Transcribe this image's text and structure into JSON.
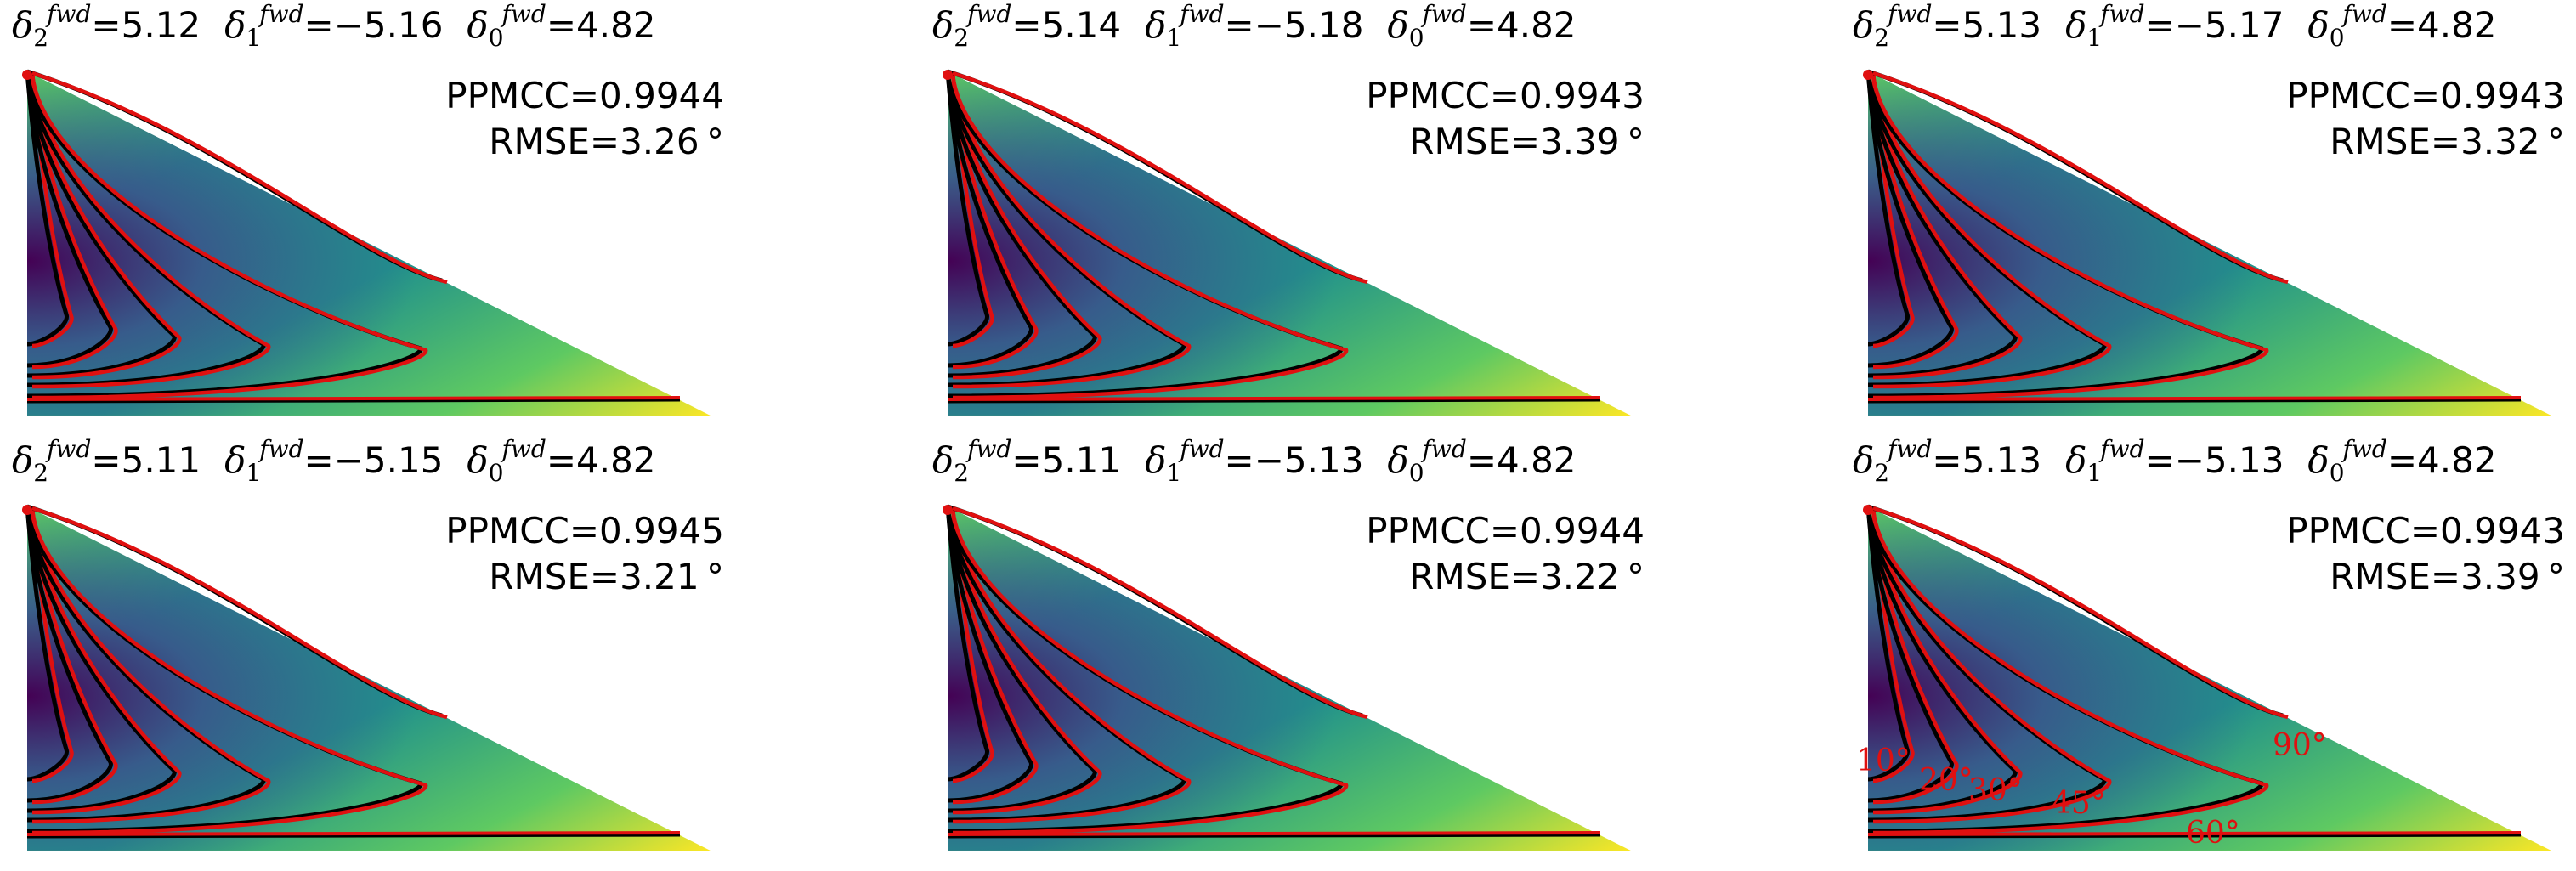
{
  "panels": [
    {
      "d2": "5.12",
      "d1": "−5.16",
      "d0": "4.82",
      "ppmcc": "PPMCC=0.9944",
      "rmse": "RMSE=3.26 °"
    },
    {
      "d2": "5.14",
      "d1": "−5.18",
      "d0": "4.82",
      "ppmcc": "PPMCC=0.9943",
      "rmse": "RMSE=3.39 °"
    },
    {
      "d2": "5.13",
      "d1": "−5.17",
      "d0": "4.82",
      "ppmcc": "PPMCC=0.9943",
      "rmse": "RMSE=3.32 °"
    },
    {
      "d2": "5.11",
      "d1": "−5.15",
      "d0": "4.82",
      "ppmcc": "PPMCC=0.9945",
      "rmse": "RMSE=3.21 °"
    },
    {
      "d2": "5.11",
      "d1": "−5.13",
      "d0": "4.82",
      "ppmcc": "PPMCC=0.9944",
      "rmse": "RMSE=3.22 °"
    },
    {
      "d2": "5.13",
      "d1": "−5.13",
      "d0": "4.82",
      "ppmcc": "PPMCC=0.9943",
      "rmse": "RMSE=3.39 °"
    }
  ],
  "symbols": {
    "delta": "δ",
    "superscript": "fwd",
    "sub2": "2",
    "sub1": "1",
    "sub0": "0",
    "equals": "="
  },
  "contour_labels": [
    "10°",
    "20°",
    "30°",
    "45°",
    "60°",
    "90°"
  ],
  "colors": {
    "model_contour": "#000000",
    "fitted_contour": "#e01010",
    "colormap": [
      "#440154",
      "#3b528b",
      "#21918c",
      "#5ec962",
      "#fde725"
    ]
  }
}
